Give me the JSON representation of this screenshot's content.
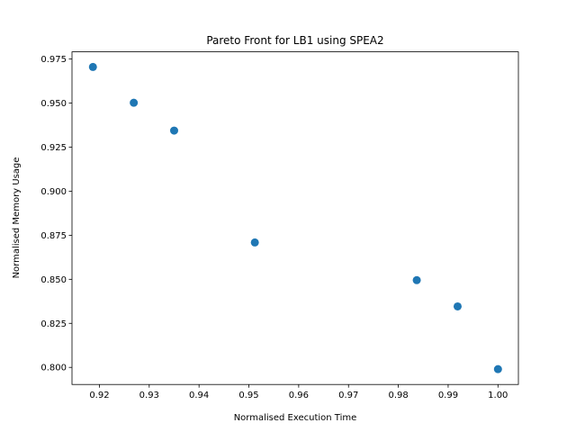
{
  "chart_data": {
    "type": "scatter",
    "title": "Pareto Front for LB1 using SPEA2",
    "xlabel": "Normalised Execution Time",
    "ylabel": "Normalised Memory Usage",
    "xlim": [
      0.9145,
      1.0041
    ],
    "ylim": [
      0.7903,
      0.9791
    ],
    "xticks": [
      0.92,
      0.93,
      0.94,
      0.95,
      0.96,
      0.97,
      0.98,
      0.99,
      1.0
    ],
    "xtick_labels": [
      "0.92",
      "0.93",
      "0.94",
      "0.95",
      "0.96",
      "0.97",
      "0.98",
      "0.99",
      "1.00"
    ],
    "yticks": [
      0.8,
      0.825,
      0.85,
      0.875,
      0.9,
      0.925,
      0.95,
      0.975
    ],
    "ytick_labels": [
      "0.800",
      "0.825",
      "0.850",
      "0.875",
      "0.900",
      "0.925",
      "0.950",
      "0.975"
    ],
    "grid": false,
    "color": "#1f77b4",
    "points": [
      {
        "x": 0.9187,
        "y": 0.9705
      },
      {
        "x": 0.9269,
        "y": 0.9502
      },
      {
        "x": 0.935,
        "y": 0.9344
      },
      {
        "x": 0.9512,
        "y": 0.8709
      },
      {
        "x": 0.9837,
        "y": 0.8495
      },
      {
        "x": 0.9919,
        "y": 0.8346
      },
      {
        "x": 1.0,
        "y": 0.799
      }
    ]
  }
}
